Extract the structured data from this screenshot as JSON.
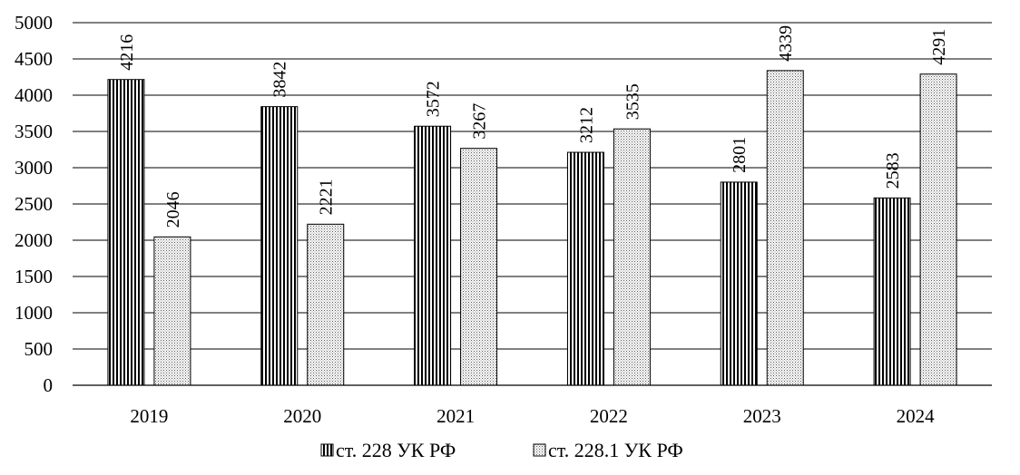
{
  "chart_data": {
    "type": "bar",
    "categories": [
      "2019",
      "2020",
      "2021",
      "2022",
      "2023",
      "2024"
    ],
    "series": [
      {
        "name": "ст. 228 УК РФ",
        "values": [
          4216,
          3842,
          3572,
          3212,
          2801,
          2583
        ],
        "pattern": "vertical-stripes"
      },
      {
        "name": "ст. 228.1 УК РФ",
        "values": [
          2046,
          2221,
          3267,
          3535,
          4339,
          4291
        ],
        "pattern": "dots"
      }
    ],
    "yticks": [
      "0",
      "500",
      "1000",
      "1500",
      "2000",
      "2500",
      "3000",
      "3500",
      "4000",
      "4500",
      "5000"
    ],
    "ylim": [
      0,
      5000
    ],
    "grid": true,
    "legend_position": "bottom-center",
    "colors": {
      "ink": "#000000",
      "background": "#ffffff"
    }
  }
}
